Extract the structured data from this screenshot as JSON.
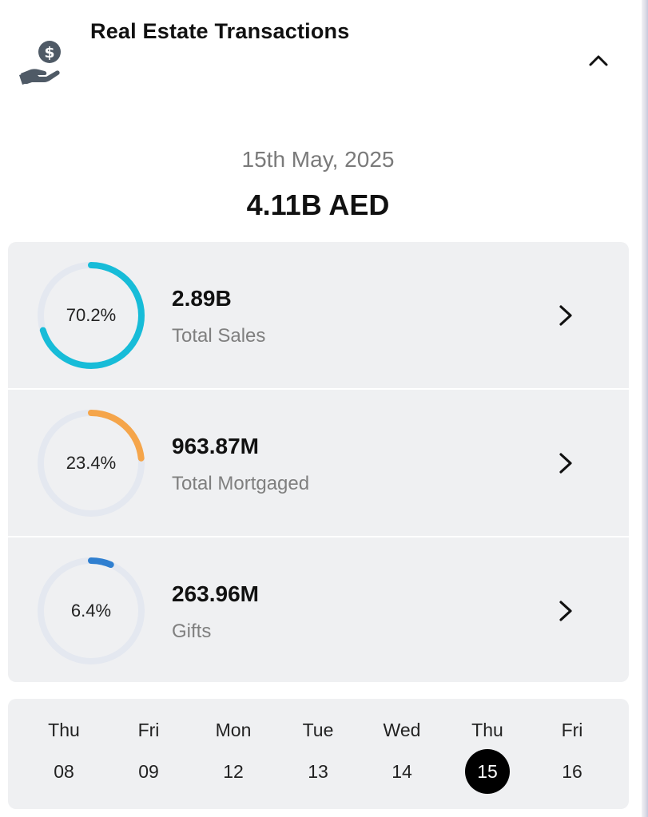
{
  "header": {
    "title": "Real Estate Transactions",
    "icon": "hand-dollar-icon",
    "collapse_icon": "chevron-up-icon"
  },
  "summary": {
    "date": "15th May, 2025",
    "total": "4.11B AED"
  },
  "breakdown": [
    {
      "percent_label": "70.2%",
      "percent": 70.2,
      "value": "2.89B",
      "label": "Total Sales",
      "color": "#17bcd8"
    },
    {
      "percent_label": "23.4%",
      "percent": 23.4,
      "value": "963.87M",
      "label": "Total Mortgaged",
      "color": "#f5a54a"
    },
    {
      "percent_label": "6.4%",
      "percent": 6.4,
      "value": "263.96M",
      "label": "Gifts",
      "color": "#2f7fd0"
    }
  ],
  "ring_track_color": "#e4e8f0",
  "calendar": {
    "days": [
      {
        "name": "Thu",
        "num": "08",
        "selected": false
      },
      {
        "name": "Fri",
        "num": "09",
        "selected": false
      },
      {
        "name": "Mon",
        "num": "12",
        "selected": false
      },
      {
        "name": "Tue",
        "num": "13",
        "selected": false
      },
      {
        "name": "Wed",
        "num": "14",
        "selected": false
      },
      {
        "name": "Thu",
        "num": "15",
        "selected": true
      },
      {
        "name": "Fri",
        "num": "16",
        "selected": false
      }
    ]
  }
}
